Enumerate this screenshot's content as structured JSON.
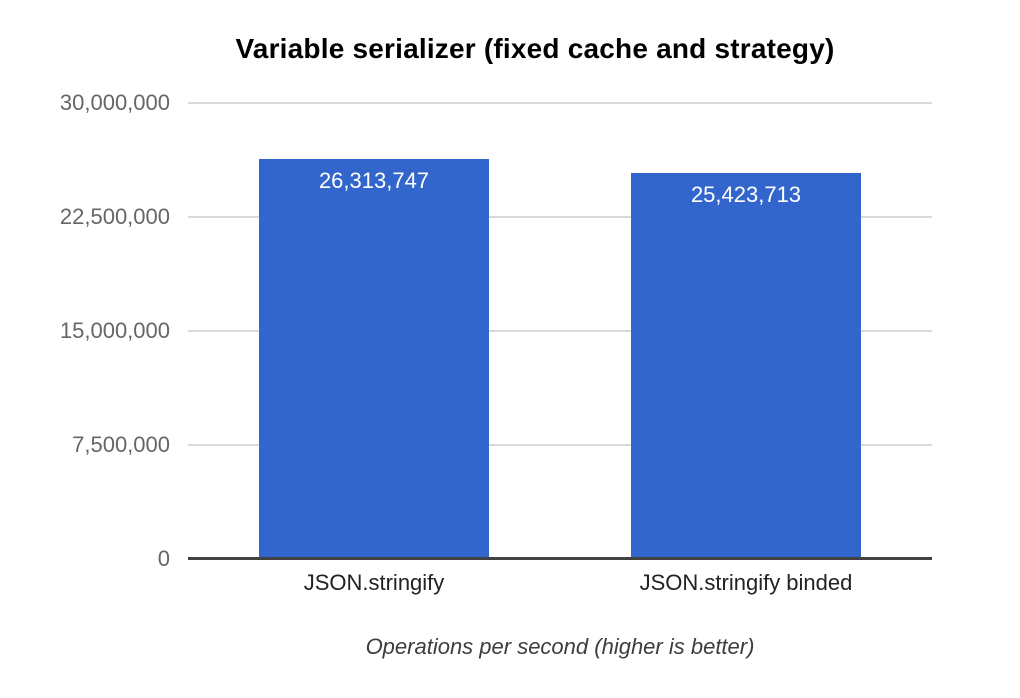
{
  "chart_data": {
    "type": "bar",
    "title": "Variable serializer (fixed cache and strategy)",
    "caption": "Operations per second (higher is better)",
    "categories": [
      "JSON.stringify",
      "JSON.stringify binded"
    ],
    "values": [
      26313747,
      25423713
    ],
    "value_labels": [
      "26,313,747",
      "25,423,713"
    ],
    "y_ticks": [
      {
        "value": 0,
        "label": "0"
      },
      {
        "value": 7500000,
        "label": "7,500,000"
      },
      {
        "value": 15000000,
        "label": "15,000,000"
      },
      {
        "value": 22500000,
        "label": "22,500,000"
      },
      {
        "value": 30000000,
        "label": "30,000,000"
      }
    ],
    "ylim": [
      0,
      30000000
    ],
    "xlabel": "",
    "ylabel": "",
    "grid": true,
    "legend": "none",
    "colors": {
      "bar": "#3366cc",
      "value_label": "#ffffff",
      "gridline": "#d9d9d9",
      "axis_line": "#424242",
      "y_tick_label": "#666666",
      "x_category_label": "#222222",
      "title": "#000000",
      "caption": "#3d3d3d",
      "background": "#ffffff"
    }
  }
}
